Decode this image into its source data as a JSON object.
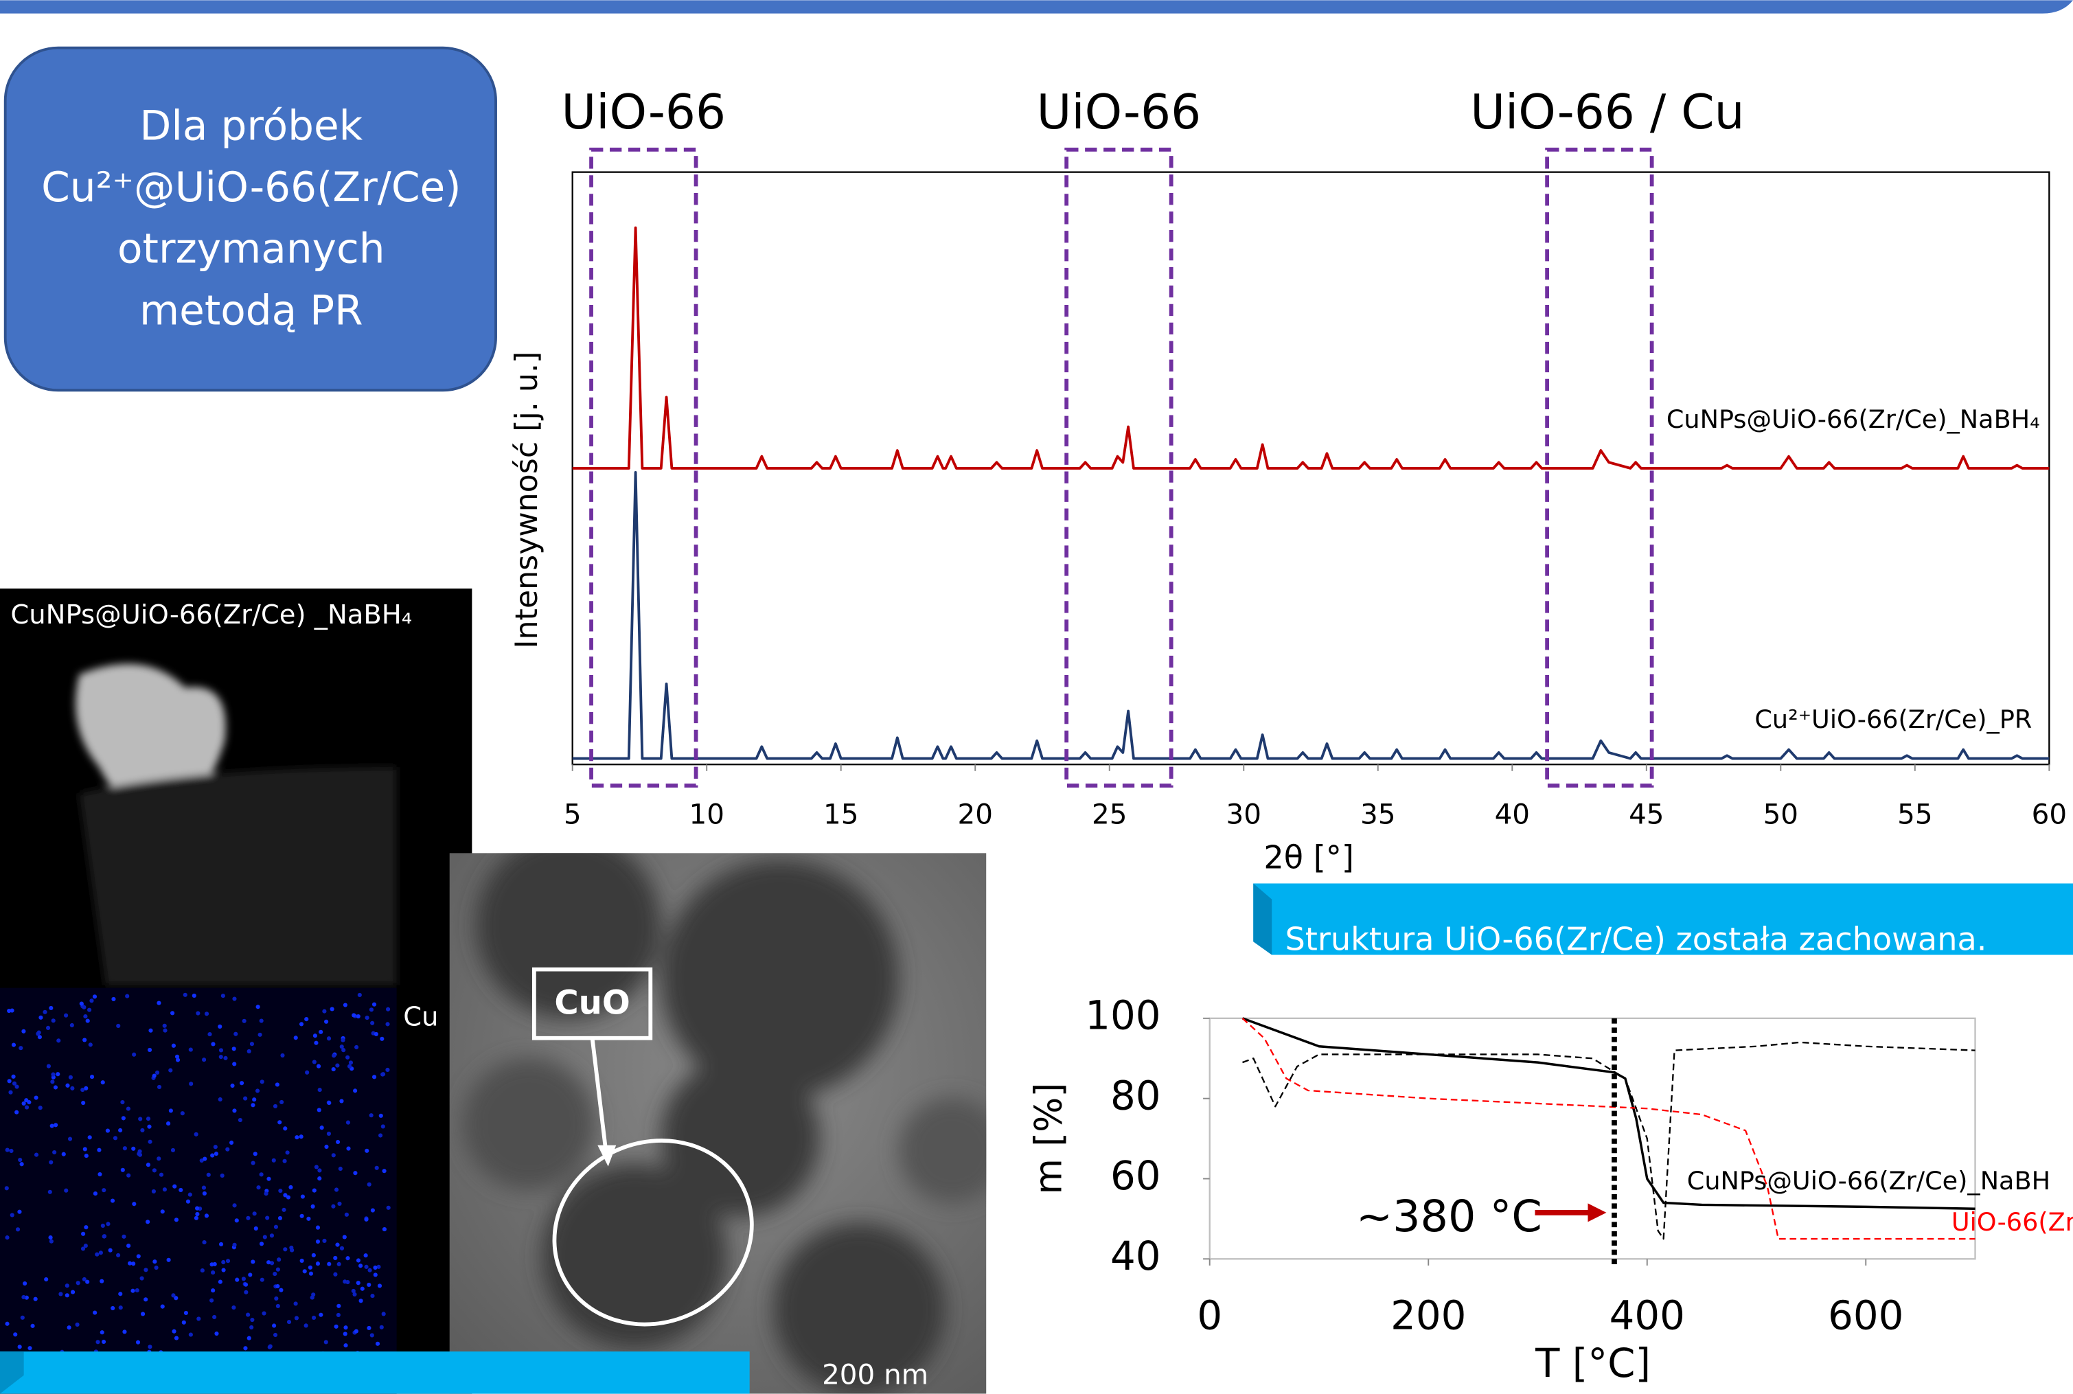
{
  "slide": {
    "intro": [
      "Dla próbek",
      "Cu²⁺@UiO-66(Zr/Ce)",
      "otrzymanych",
      "metodą PR"
    ],
    "conclusion": "Struktura UiO-66(Zr/Ce) została zachowana.",
    "map_label": "CuNPs@UiO-66(Zr/Ce) _NaBH₄",
    "element_label": "Cu",
    "tem_label": "CuO",
    "scale_bar": "200 nm"
  },
  "chart_data": [
    {
      "type": "line",
      "xlabel": "2θ [°]",
      "ylabel": "Intensywność [j. u.]",
      "xlim": [
        5,
        60
      ],
      "xticks": [
        5,
        10,
        15,
        20,
        25,
        30,
        35,
        40,
        45,
        50,
        55,
        60
      ],
      "ylim": [
        0,
        100
      ],
      "annotations": [
        {
          "text": "UiO-66",
          "xrange": [
            5.7,
            9.6
          ]
        },
        {
          "text": "UiO-66",
          "xrange": [
            23.4,
            27.3
          ]
        },
        {
          "text": "UiO-66 / Cu",
          "xrange": [
            41.3,
            45.2
          ]
        }
      ],
      "x": [
        5,
        7.1,
        7.35,
        7.6,
        8.3,
        8.5,
        8.7,
        11.85,
        12.05,
        12.25,
        13.9,
        14.1,
        14.3,
        14.6,
        14.8,
        15.0,
        16.9,
        17.1,
        17.3,
        18.4,
        18.6,
        18.8,
        18.9,
        19.1,
        19.3,
        20.6,
        20.8,
        21.0,
        22.1,
        22.3,
        22.5,
        23.9,
        24.1,
        24.3,
        25.1,
        25.3,
        25.5,
        25.7,
        25.9,
        28.0,
        28.2,
        28.4,
        29.5,
        29.7,
        29.9,
        30.5,
        30.7,
        30.9,
        32.0,
        32.2,
        32.4,
        32.9,
        33.1,
        33.3,
        34.3,
        34.5,
        34.7,
        35.5,
        35.7,
        35.9,
        37.3,
        37.5,
        37.7,
        39.3,
        39.5,
        39.7,
        40.7,
        40.9,
        41.1,
        43.0,
        43.3,
        43.6,
        44.4,
        44.6,
        44.8,
        47.8,
        48.0,
        48.2,
        50.0,
        50.3,
        50.6,
        51.6,
        51.8,
        52.0,
        54.5,
        54.7,
        54.9,
        56.6,
        56.8,
        57.0,
        58.6,
        58.8,
        59.0,
        60
      ],
      "series": [
        {
          "name": "CuNPs@UiO-66(Zr/Ce)_NaBH₄",
          "color": "#c00000",
          "values": [
            50,
            50,
            90.6,
            50,
            50,
            62,
            50,
            50,
            52,
            50,
            50,
            51,
            50,
            50,
            52,
            50,
            50,
            53,
            50,
            50,
            52,
            50,
            50,
            52,
            50,
            50,
            51,
            50,
            50,
            53,
            50,
            50,
            51,
            50,
            50,
            52,
            51,
            57,
            50,
            50,
            51.5,
            50,
            50,
            51.5,
            50,
            50,
            54,
            50,
            50,
            51,
            50,
            50,
            52.5,
            50,
            50,
            51,
            50,
            50,
            51.5,
            50,
            50,
            51.5,
            50,
            50,
            51,
            50,
            50,
            51,
            50,
            50,
            53,
            51,
            50,
            51,
            50,
            50,
            50.5,
            50,
            50,
            52,
            50,
            50,
            51,
            50,
            50,
            50.5,
            50,
            50,
            52,
            50,
            50,
            50.5,
            50,
            50
          ]
        },
        {
          "name": "Cu²⁺UiO-66(Zr/Ce)_PR",
          "color": "#1f3a6e",
          "values": [
            1,
            1,
            49.3,
            1,
            1,
            13.6,
            1,
            1,
            3,
            1,
            1,
            2,
            1,
            1,
            3.5,
            1,
            1,
            4.5,
            1,
            1,
            3,
            1,
            1,
            3,
            1,
            1,
            2,
            1,
            1,
            4,
            1,
            1,
            2,
            1,
            1,
            3,
            2,
            9,
            1,
            1,
            2.5,
            1,
            1,
            2.5,
            1,
            1,
            5,
            1,
            1,
            2,
            1,
            1,
            3.5,
            1,
            1,
            2,
            1,
            1,
            2.5,
            1,
            1,
            2.5,
            1,
            1,
            2,
            1,
            1,
            2,
            1,
            1,
            4,
            2,
            1,
            2,
            1,
            1,
            1.5,
            1,
            1,
            2.5,
            1,
            1,
            2,
            1,
            1,
            1.5,
            1,
            1,
            2.5,
            1,
            1,
            1.5,
            1,
            1
          ]
        }
      ]
    },
    {
      "type": "line",
      "xlabel": "T [°C]",
      "ylabel": "m [%]",
      "xlim": [
        0,
        700
      ],
      "xticks": [
        0,
        200,
        400,
        600
      ],
      "ylim": [
        40,
        100
      ],
      "yticks": [
        40,
        60,
        80,
        100
      ],
      "annotations": [
        {
          "text": "~380 °C",
          "x": 370
        }
      ],
      "series": [
        {
          "name": "CuNPs@UiO-66(Zr/Ce)_NaBH",
          "color": "#000000",
          "line_style": "solid",
          "x": [
            30,
            100,
            200,
            300,
            370,
            380,
            390,
            400,
            415,
            450,
            600,
            700
          ],
          "values": [
            100,
            93,
            91,
            89,
            86.5,
            85,
            75,
            60,
            54,
            53.5,
            53,
            52.5
          ]
        },
        {
          "name": "UiO-66(Zr",
          "color": "#ff0000",
          "line_style": "dashed",
          "x": [
            30,
            50,
            70,
            90,
            200,
            400,
            450,
            490,
            510,
            520,
            600,
            700
          ],
          "values": [
            100,
            95,
            85,
            82,
            80,
            77.5,
            76,
            72,
            58,
            45,
            45,
            45
          ]
        },
        {
          "color": "#000000",
          "line_style": "dashed",
          "x": [
            30,
            40,
            60,
            80,
            100,
            200,
            300,
            350,
            380,
            400,
            410,
            415,
            425,
            500,
            540,
            600,
            700
          ],
          "values": [
            89,
            90,
            78,
            88,
            91,
            91,
            91,
            90,
            85,
            70,
            47,
            45,
            92,
            93,
            94,
            93,
            92
          ]
        }
      ]
    }
  ]
}
